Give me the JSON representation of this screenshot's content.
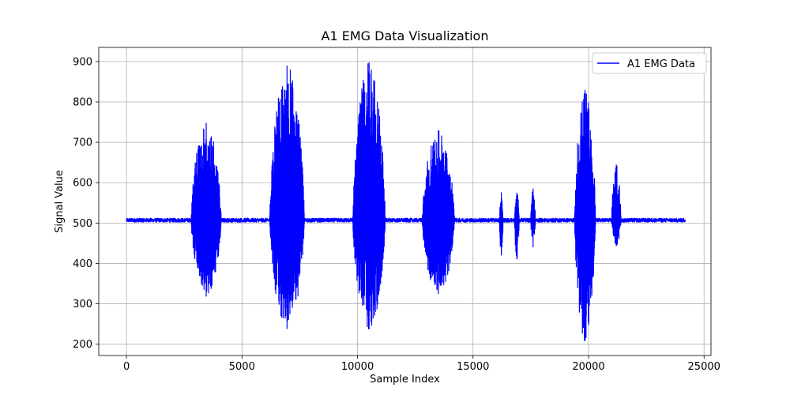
{
  "chart_data": {
    "type": "line",
    "title": "A1 EMG Data Visualization",
    "xlabel": "Sample Index",
    "ylabel": "Signal Value",
    "xlim": [
      -1200,
      25300
    ],
    "ylim": [
      172,
      935
    ],
    "x_ticks": [
      0,
      5000,
      10000,
      15000,
      20000,
      25000
    ],
    "x_tick_labels": [
      "0",
      "5000",
      "10000",
      "15000",
      "20000",
      "25000"
    ],
    "y_ticks": [
      200,
      300,
      400,
      500,
      600,
      700,
      800,
      900
    ],
    "y_tick_labels": [
      "200",
      "300",
      "400",
      "500",
      "600",
      "700",
      "800",
      "900"
    ],
    "grid": true,
    "legend_position": "top-right",
    "series": [
      {
        "name": "A1 EMG Data",
        "color": "#0000ff",
        "x_range": [
          0,
          24200
        ],
        "baseline": 507,
        "baseline_range": [
          502,
          512
        ],
        "bursts": [
          {
            "start": 2800,
            "end": 4100,
            "max": 748,
            "min": 318
          },
          {
            "start": 6200,
            "end": 7700,
            "max": 890,
            "min": 238
          },
          {
            "start": 9800,
            "end": 11200,
            "max": 898,
            "min": 237
          },
          {
            "start": 12800,
            "end": 14200,
            "max": 730,
            "min": 324
          },
          {
            "start": 16150,
            "end": 16300,
            "max": 576,
            "min": 420
          },
          {
            "start": 16800,
            "end": 17000,
            "max": 575,
            "min": 410
          },
          {
            "start": 17500,
            "end": 17700,
            "max": 585,
            "min": 440
          },
          {
            "start": 19400,
            "end": 20300,
            "max": 830,
            "min": 208
          },
          {
            "start": 21000,
            "end": 21400,
            "max": 645,
            "min": 443
          }
        ]
      }
    ]
  }
}
